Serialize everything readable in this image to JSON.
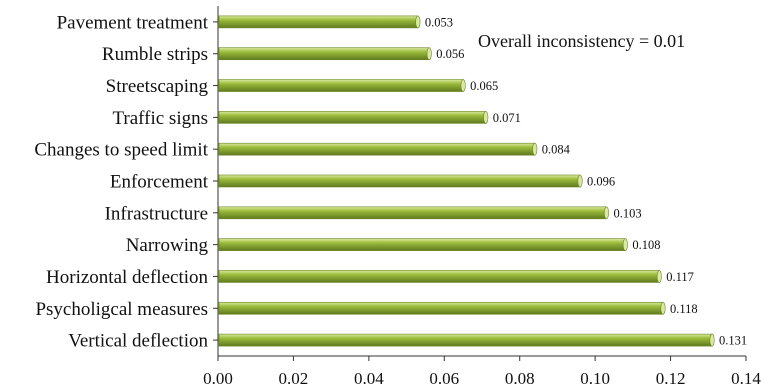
{
  "chart_data": {
    "type": "bar",
    "orientation": "horizontal",
    "categories": [
      "Pavement treatment",
      "Rumble strips",
      "Streetscaping",
      "Traffic signs",
      "Changes to speed limit",
      "Enforcement",
      "Infrastructure",
      "Narrowing",
      "Horizontal deflection",
      "Psycholigcal measures",
      "Vertical deflection"
    ],
    "values": [
      0.053,
      0.056,
      0.065,
      0.071,
      0.084,
      0.096,
      0.103,
      0.108,
      0.117,
      0.118,
      0.131
    ],
    "data_labels": [
      "0.053",
      "0.056",
      "0.065",
      "0.071",
      "0.084",
      "0.096",
      "0.103",
      "0.108",
      "0.117",
      "0.118",
      "0.131"
    ],
    "xlim": [
      0,
      0.14
    ],
    "x_ticks": [
      0,
      0.02,
      0.04,
      0.06,
      0.08,
      0.1,
      0.12,
      0.14
    ],
    "x_tick_labels": [
      "0.00",
      "0.02",
      "0.04",
      "0.06",
      "0.08",
      "0.10",
      "0.12",
      "0.14"
    ],
    "annotation": "Overall inconsistency = 0.01",
    "title": "",
    "xlabel": "",
    "ylabel": "",
    "grid": false,
    "legend": "none",
    "bar_color": "#9bbb3b",
    "bar_color_light": "#d9ea9e",
    "bar_color_dark": "#5f7a1f"
  }
}
